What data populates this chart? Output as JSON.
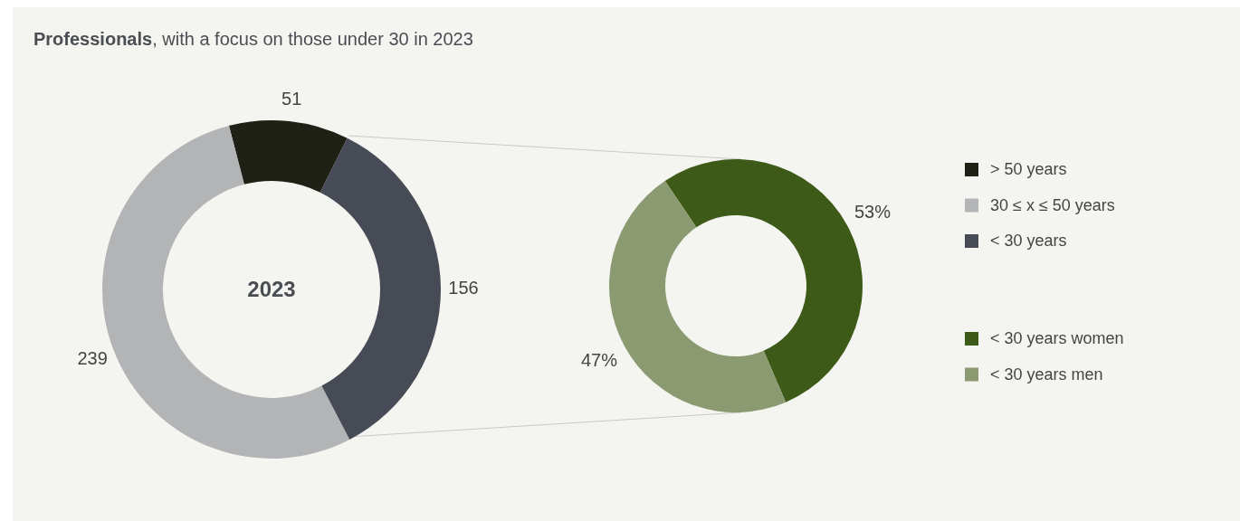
{
  "chart_data": [
    {
      "type": "donut",
      "title": "Professionals, with a focus on those under 30 in 2023",
      "categories": [
        "> 50 years",
        "30 ≤ x ≤ 50 years",
        "< 30 years"
      ],
      "values": [
        51,
        239,
        156
      ],
      "colors": [
        "#1f2016",
        "#b2b4b6",
        "#464b55"
      ],
      "data_labels": true,
      "annotations": [
        "2023"
      ],
      "legend": "right"
    },
    {
      "type": "donut",
      "categories": [
        "< 30 years women",
        "< 30 years men"
      ],
      "values": [
        53,
        47
      ],
      "colors": [
        "#3d5a18",
        "#8b9a70"
      ],
      "value_labels": [
        "53%",
        "47%"
      ],
      "legend": "right"
    }
  ]
}
